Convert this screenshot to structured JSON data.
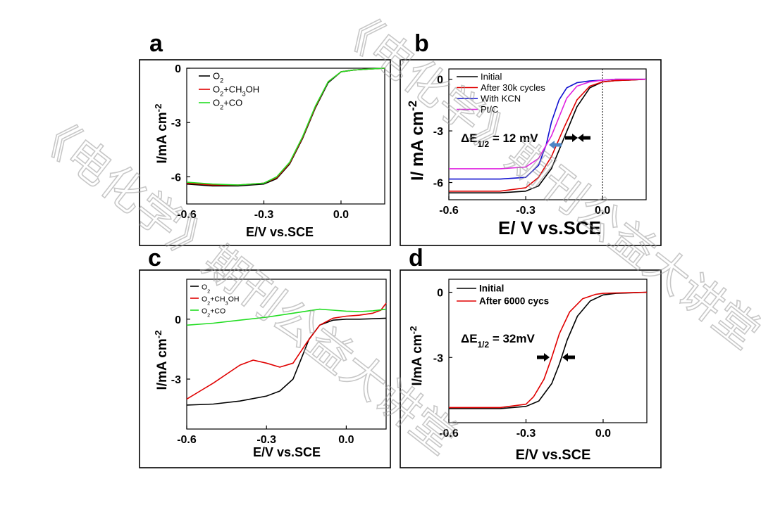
{
  "watermarks": [
    "《电化学》期刊公益大讲堂",
    "《电化学》期刊公益大讲堂"
  ],
  "chart_data": [
    {
      "panel": "a",
      "type": "line",
      "xlabel": "E/V vs.SCE",
      "ylabel": "I/mA cm",
      "ylabel_sup": "-2",
      "xlim": [
        -0.6,
        0.17
      ],
      "ylim": [
        -7.5,
        0
      ],
      "xticks": [
        -0.6,
        -0.3,
        0.0
      ],
      "xtick_labels": [
        "-0.6",
        "-0.3",
        "0.0"
      ],
      "yticks": [
        0,
        -3,
        -6
      ],
      "ytick_labels": [
        "0",
        "-3",
        "-6"
      ],
      "legend": [
        "O2",
        "O2+CH3OH",
        "O2+CO"
      ],
      "series": [
        {
          "name": "O2",
          "color": "#000000",
          "x": [
            -0.6,
            -0.5,
            -0.4,
            -0.3,
            -0.25,
            -0.2,
            -0.15,
            -0.1,
            -0.05,
            0.0,
            0.05,
            0.1,
            0.17
          ],
          "y": [
            -6.4,
            -6.5,
            -6.5,
            -6.4,
            -6.1,
            -5.3,
            -3.9,
            -2.2,
            -0.8,
            -0.2,
            -0.1,
            -0.05,
            0.0
          ]
        },
        {
          "name": "O2+CH3OH",
          "color": "#e00000",
          "x": [
            -0.6,
            -0.5,
            -0.4,
            -0.3,
            -0.25,
            -0.2,
            -0.15,
            -0.1,
            -0.05,
            0.0,
            0.05,
            0.1,
            0.17
          ],
          "y": [
            -6.35,
            -6.45,
            -6.45,
            -6.35,
            -6.05,
            -5.25,
            -3.85,
            -2.15,
            -0.75,
            -0.2,
            -0.1,
            -0.05,
            0.0
          ]
        },
        {
          "name": "O2+CO",
          "color": "#22dd22",
          "x": [
            -0.6,
            -0.5,
            -0.4,
            -0.3,
            -0.25,
            -0.2,
            -0.15,
            -0.1,
            -0.05,
            0.0,
            0.05,
            0.1,
            0.17
          ],
          "y": [
            -6.3,
            -6.4,
            -6.45,
            -6.35,
            -6.0,
            -5.2,
            -3.8,
            -2.1,
            -0.75,
            -0.2,
            -0.1,
            -0.05,
            0.0
          ]
        }
      ]
    },
    {
      "panel": "b",
      "type": "line",
      "xlabel": "E/ V vs.SCE",
      "ylabel": "I/ mA cm",
      "ylabel_sup": "-2",
      "xlim": [
        -0.6,
        0.17
      ],
      "ylim": [
        -7.0,
        0.6
      ],
      "xticks": [
        -0.6,
        -0.3,
        0.0
      ],
      "xtick_labels": [
        "-0.6",
        "-0.3",
        "0.0"
      ],
      "yticks": [
        0,
        -3,
        -6
      ],
      "ytick_labels": [
        "0",
        "-3",
        "-6"
      ],
      "legend": [
        "Initial",
        "After 30k cycles",
        "With KCN",
        "Pt/C"
      ],
      "annotation": "ΔE1/2 = 12 mV",
      "series": [
        {
          "name": "Initial",
          "color": "#000000",
          "x": [
            -0.6,
            -0.4,
            -0.3,
            -0.25,
            -0.2,
            -0.15,
            -0.1,
            -0.05,
            0.0,
            0.05,
            0.1,
            0.17
          ],
          "y": [
            -6.6,
            -6.6,
            -6.5,
            -6.2,
            -5.2,
            -3.4,
            -1.6,
            -0.5,
            -0.15,
            -0.08,
            -0.05,
            0.0
          ]
        },
        {
          "name": "After 30k cycles",
          "color": "#e00000",
          "x": [
            -0.6,
            -0.4,
            -0.3,
            -0.25,
            -0.2,
            -0.15,
            -0.1,
            -0.05,
            0.0,
            0.05,
            0.1,
            0.17
          ],
          "y": [
            -6.5,
            -6.5,
            -6.3,
            -5.7,
            -4.5,
            -2.8,
            -1.2,
            -0.4,
            -0.15,
            -0.08,
            -0.05,
            0.0
          ]
        },
        {
          "name": "With KCN",
          "color": "#1010d0",
          "x": [
            -0.6,
            -0.4,
            -0.3,
            -0.25,
            -0.22,
            -0.2,
            -0.17,
            -0.14,
            -0.1,
            -0.05,
            0.0,
            0.05,
            0.17
          ],
          "y": [
            -5.8,
            -5.8,
            -5.7,
            -5.0,
            -3.8,
            -2.5,
            -1.2,
            -0.5,
            -0.2,
            -0.1,
            -0.05,
            0.0,
            0.0
          ]
        },
        {
          "name": "Pt/C",
          "color": "#e020e0",
          "x": [
            -0.6,
            -0.4,
            -0.3,
            -0.25,
            -0.2,
            -0.17,
            -0.14,
            -0.1,
            -0.05,
            0.0,
            0.05,
            0.17
          ],
          "y": [
            -5.2,
            -5.2,
            -5.1,
            -4.6,
            -3.3,
            -2.2,
            -1.1,
            -0.4,
            -0.15,
            -0.05,
            0.0,
            0.0
          ]
        }
      ]
    },
    {
      "panel": "c",
      "type": "line",
      "xlabel": "E/V vs.SCE",
      "ylabel": "I/mA cm",
      "ylabel_sup": "-2",
      "xlim": [
        -0.6,
        0.15
      ],
      "ylim": [
        -5.5,
        2.0
      ],
      "xticks": [
        -0.6,
        -0.3,
        0.0
      ],
      "xtick_labels": [
        "-0.6",
        "-0.3",
        "0.0"
      ],
      "yticks": [
        0,
        -3
      ],
      "ytick_labels": [
        "0",
        "-3"
      ],
      "legend": [
        "O2",
        "O2+CH3OH",
        "O2+CO"
      ],
      "series": [
        {
          "name": "O2",
          "color": "#000000",
          "x": [
            -0.6,
            -0.5,
            -0.4,
            -0.3,
            -0.25,
            -0.2,
            -0.17,
            -0.14,
            -0.1,
            -0.05,
            0.0,
            0.05,
            0.1,
            0.15
          ],
          "y": [
            -4.3,
            -4.25,
            -4.1,
            -3.85,
            -3.6,
            -3.0,
            -2.0,
            -1.0,
            -0.3,
            -0.05,
            0.0,
            0.0,
            0.02,
            0.05
          ]
        },
        {
          "name": "O2+CH3OH",
          "color": "#e00000",
          "x": [
            -0.6,
            -0.55,
            -0.5,
            -0.45,
            -0.4,
            -0.35,
            -0.3,
            -0.25,
            -0.2,
            -0.15,
            -0.1,
            -0.05,
            0.0,
            0.05,
            0.1,
            0.13,
            0.15
          ],
          "y": [
            -4.0,
            -3.6,
            -3.2,
            -2.75,
            -2.3,
            -2.05,
            -2.2,
            -2.4,
            -2.2,
            -1.2,
            -0.3,
            0.05,
            0.15,
            0.2,
            0.3,
            0.45,
            0.8
          ]
        },
        {
          "name": "O2+CO",
          "color": "#22dd22",
          "x": [
            -0.6,
            -0.5,
            -0.4,
            -0.3,
            -0.2,
            -0.15,
            -0.1,
            -0.05,
            0.0,
            0.05,
            0.1,
            0.15
          ],
          "y": [
            -0.3,
            -0.2,
            -0.05,
            0.1,
            0.3,
            0.4,
            0.5,
            0.45,
            0.4,
            0.38,
            0.42,
            0.5
          ]
        }
      ]
    },
    {
      "panel": "d",
      "type": "line",
      "xlabel": "E/V vs.SCE",
      "ylabel": "I/mA cm",
      "ylabel_sup": "-2",
      "xlim": [
        -0.6,
        0.17
      ],
      "ylim": [
        -6.0,
        0.6
      ],
      "xticks": [
        -0.6,
        -0.3,
        0.0
      ],
      "xtick_labels": [
        "-0.6",
        "-0.3",
        "0.0"
      ],
      "yticks": [
        0,
        -3
      ],
      "ytick_labels": [
        "0",
        "-3"
      ],
      "legend": [
        "Initial",
        "After 6000 cycs"
      ],
      "annotation": "ΔE1/2 = 32mV",
      "series": [
        {
          "name": "Initial",
          "color": "#000000",
          "x": [
            -0.6,
            -0.4,
            -0.3,
            -0.25,
            -0.2,
            -0.17,
            -0.14,
            -0.1,
            -0.05,
            0.0,
            0.05,
            0.1,
            0.17
          ],
          "y": [
            -5.35,
            -5.35,
            -5.25,
            -5.0,
            -4.2,
            -3.3,
            -2.2,
            -1.1,
            -0.4,
            -0.12,
            -0.05,
            -0.03,
            0.0
          ]
        },
        {
          "name": "After 6000 cycs",
          "color": "#e00000",
          "x": [
            -0.6,
            -0.4,
            -0.3,
            -0.27,
            -0.23,
            -0.2,
            -0.17,
            -0.13,
            -0.08,
            -0.03,
            0.0,
            0.05,
            0.17
          ],
          "y": [
            -5.3,
            -5.3,
            -5.15,
            -4.8,
            -4.0,
            -3.0,
            -1.9,
            -0.9,
            -0.3,
            -0.1,
            -0.05,
            -0.03,
            0.0
          ]
        }
      ]
    }
  ]
}
